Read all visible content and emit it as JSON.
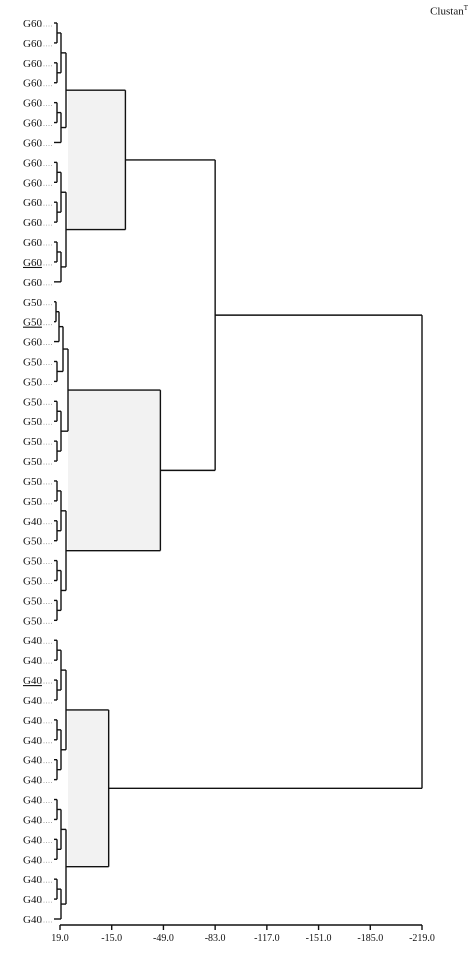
{
  "brand": {
    "name": "Clustan",
    "mark": "T"
  },
  "dendrogram": {
    "leaf_labels": [
      "G60",
      "G60",
      "G60",
      "G60",
      "G60",
      "G60",
      "G60",
      "G60",
      "G60",
      "G60",
      "G60",
      "G60",
      "G60",
      "G60",
      "G50",
      "G50",
      "G60",
      "G50",
      "G50",
      "G50",
      "G50",
      "G50",
      "G50",
      "G50",
      "G50",
      "G40",
      "G50",
      "G50",
      "G50",
      "G50",
      "G50",
      "G40",
      "G40",
      "G40",
      "G40",
      "G40",
      "G40",
      "G40",
      "G40",
      "G40",
      "G40",
      "G40",
      "G40",
      "G40",
      "G40",
      "G40"
    ],
    "underlined_leaves": [
      12,
      15,
      33
    ],
    "axis": {
      "ticks": [
        "19.0",
        "-15.0",
        "-49.0",
        "-83.0",
        "-117.0",
        "-151.0",
        "-185.0",
        "-219.0"
      ],
      "range": [
        19.0,
        -219.0
      ]
    },
    "clusters": [
      {
        "leaves": [
          0,
          13
        ],
        "fused_at": -24.0,
        "highlight_color": "#f2f2f2"
      },
      {
        "leaves": [
          14,
          30
        ],
        "fused_at": -47.0,
        "highlight_color": "#f2f2f2"
      },
      {
        "leaves": [
          31,
          45
        ],
        "fused_at": -13.0,
        "highlight_color": "#f2f2f2"
      }
    ],
    "fusions": [
      {
        "joins": [
          "cluster-1",
          "cluster-2"
        ],
        "at": -83.0
      },
      {
        "joins": [
          "cluster-1+2",
          "cluster-3"
        ],
        "at": -219.0
      }
    ]
  }
}
